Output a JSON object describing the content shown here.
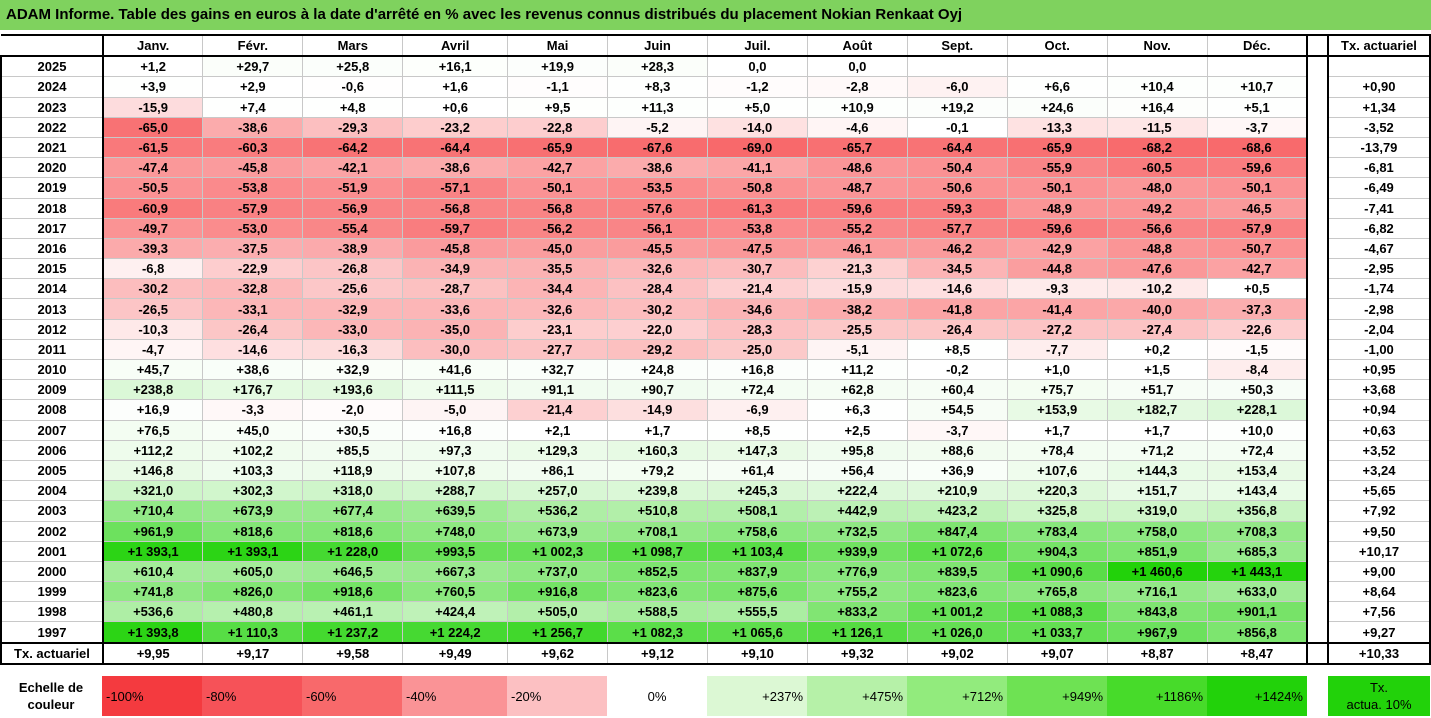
{
  "title": "ADAM Informe. Table des gains en euros à la date d'arrêté en % avec les revenus connus distribués du placement Nokian Renkaat Oyj",
  "months": [
    "Janv.",
    "Févr.",
    "Mars",
    "Avril",
    "Mai",
    "Juin",
    "Juil.",
    "Août",
    "Sept.",
    "Oct.",
    "Nov.",
    "Déc."
  ],
  "actuarial_header": "Tx. actuariel",
  "rows": [
    {
      "year": "2025",
      "values": [
        "+1,2",
        "+29,7",
        "+25,8",
        "+16,1",
        "+19,9",
        "+28,3",
        "0,0",
        "0,0",
        "",
        "",
        "",
        ""
      ],
      "rate": ""
    },
    {
      "year": "2024",
      "values": [
        "+3,9",
        "+2,9",
        "-0,6",
        "+1,6",
        "-1,1",
        "+8,3",
        "-1,2",
        "-2,8",
        "-6,0",
        "+6,6",
        "+10,4",
        "+10,7"
      ],
      "rate": "+0,90"
    },
    {
      "year": "2023",
      "values": [
        "-15,9",
        "+7,4",
        "+4,8",
        "+0,6",
        "+9,5",
        "+11,3",
        "+5,0",
        "+10,9",
        "+19,2",
        "+24,6",
        "+16,4",
        "+5,1"
      ],
      "rate": "+1,34"
    },
    {
      "year": "2022",
      "values": [
        "-65,0",
        "-38,6",
        "-29,3",
        "-23,2",
        "-22,8",
        "-5,2",
        "-14,0",
        "-4,6",
        "-0,1",
        "-13,3",
        "-11,5",
        "-3,7"
      ],
      "rate": "-3,52"
    },
    {
      "year": "2021",
      "values": [
        "-61,5",
        "-60,3",
        "-64,2",
        "-64,4",
        "-65,9",
        "-67,6",
        "-69,0",
        "-65,7",
        "-64,4",
        "-65,9",
        "-68,2",
        "-68,6"
      ],
      "rate": "-13,79"
    },
    {
      "year": "2020",
      "values": [
        "-47,4",
        "-45,8",
        "-42,1",
        "-38,6",
        "-42,7",
        "-38,6",
        "-41,1",
        "-48,6",
        "-50,4",
        "-55,9",
        "-60,5",
        "-59,6"
      ],
      "rate": "-6,81"
    },
    {
      "year": "2019",
      "values": [
        "-50,5",
        "-53,8",
        "-51,9",
        "-57,1",
        "-50,1",
        "-53,5",
        "-50,8",
        "-48,7",
        "-50,6",
        "-50,1",
        "-48,0",
        "-50,1"
      ],
      "rate": "-6,49"
    },
    {
      "year": "2018",
      "values": [
        "-60,9",
        "-57,9",
        "-56,9",
        "-56,8",
        "-56,8",
        "-57,6",
        "-61,3",
        "-59,6",
        "-59,3",
        "-48,9",
        "-49,2",
        "-46,5"
      ],
      "rate": "-7,41"
    },
    {
      "year": "2017",
      "values": [
        "-49,7",
        "-53,0",
        "-55,4",
        "-59,7",
        "-56,2",
        "-56,1",
        "-53,8",
        "-55,2",
        "-57,7",
        "-59,6",
        "-56,6",
        "-57,9"
      ],
      "rate": "-6,82"
    },
    {
      "year": "2016",
      "values": [
        "-39,3",
        "-37,5",
        "-38,9",
        "-45,8",
        "-45,0",
        "-45,5",
        "-47,5",
        "-46,1",
        "-46,2",
        "-42,9",
        "-48,8",
        "-50,7"
      ],
      "rate": "-4,67"
    },
    {
      "year": "2015",
      "values": [
        "-6,8",
        "-22,9",
        "-26,8",
        "-34,9",
        "-35,5",
        "-32,6",
        "-30,7",
        "-21,3",
        "-34,5",
        "-44,8",
        "-47,6",
        "-42,7"
      ],
      "rate": "-2,95"
    },
    {
      "year": "2014",
      "values": [
        "-30,2",
        "-32,8",
        "-25,6",
        "-28,7",
        "-34,4",
        "-28,4",
        "-21,4",
        "-15,9",
        "-14,6",
        "-9,3",
        "-10,2",
        "+0,5"
      ],
      "rate": "-1,74"
    },
    {
      "year": "2013",
      "values": [
        "-26,5",
        "-33,1",
        "-32,9",
        "-33,6",
        "-32,6",
        "-30,2",
        "-34,6",
        "-38,2",
        "-41,8",
        "-41,4",
        "-40,0",
        "-37,3"
      ],
      "rate": "-2,98"
    },
    {
      "year": "2012",
      "values": [
        "-10,3",
        "-26,4",
        "-33,0",
        "-35,0",
        "-23,1",
        "-22,0",
        "-28,3",
        "-25,5",
        "-26,4",
        "-27,2",
        "-27,4",
        "-22,6"
      ],
      "rate": "-2,04"
    },
    {
      "year": "2011",
      "values": [
        "-4,7",
        "-14,6",
        "-16,3",
        "-30,0",
        "-27,7",
        "-29,2",
        "-25,0",
        "-5,1",
        "+8,5",
        "-7,7",
        "+0,2",
        "-1,5"
      ],
      "rate": "-1,00"
    },
    {
      "year": "2010",
      "values": [
        "+45,7",
        "+38,6",
        "+32,9",
        "+41,6",
        "+32,7",
        "+24,8",
        "+16,8",
        "+11,2",
        "-0,2",
        "+1,0",
        "+1,5",
        "-8,4"
      ],
      "rate": "+0,95"
    },
    {
      "year": "2009",
      "values": [
        "+238,8",
        "+176,7",
        "+193,6",
        "+111,5",
        "+91,1",
        "+90,7",
        "+72,4",
        "+62,8",
        "+60,4",
        "+75,7",
        "+51,7",
        "+50,3"
      ],
      "rate": "+3,68"
    },
    {
      "year": "2008",
      "values": [
        "+16,9",
        "-3,3",
        "-2,0",
        "-5,0",
        "-21,4",
        "-14,9",
        "-6,9",
        "+6,3",
        "+54,5",
        "+153,9",
        "+182,7",
        "+228,1"
      ],
      "rate": "+0,94"
    },
    {
      "year": "2007",
      "values": [
        "+76,5",
        "+45,0",
        "+30,5",
        "+16,8",
        "+2,1",
        "+1,7",
        "+8,5",
        "+2,5",
        "-3,7",
        "+1,7",
        "+1,7",
        "+10,0"
      ],
      "rate": "+0,63"
    },
    {
      "year": "2006",
      "values": [
        "+112,2",
        "+102,2",
        "+85,5",
        "+97,3",
        "+129,3",
        "+160,3",
        "+147,3",
        "+95,8",
        "+88,6",
        "+78,4",
        "+71,2",
        "+72,4"
      ],
      "rate": "+3,52"
    },
    {
      "year": "2005",
      "values": [
        "+146,8",
        "+103,3",
        "+118,9",
        "+107,8",
        "+86,1",
        "+79,2",
        "+61,4",
        "+56,4",
        "+36,9",
        "+107,6",
        "+144,3",
        "+153,4"
      ],
      "rate": "+3,24"
    },
    {
      "year": "2004",
      "values": [
        "+321,0",
        "+302,3",
        "+318,0",
        "+288,7",
        "+257,0",
        "+239,8",
        "+245,3",
        "+222,4",
        "+210,9",
        "+220,3",
        "+151,7",
        "+143,4"
      ],
      "rate": "+5,65"
    },
    {
      "year": "2003",
      "values": [
        "+710,4",
        "+673,9",
        "+677,4",
        "+639,5",
        "+536,2",
        "+510,8",
        "+508,1",
        "+442,9",
        "+423,2",
        "+325,8",
        "+319,0",
        "+356,8"
      ],
      "rate": "+7,92"
    },
    {
      "year": "2002",
      "values": [
        "+961,9",
        "+818,6",
        "+818,6",
        "+748,0",
        "+673,9",
        "+708,1",
        "+758,6",
        "+732,5",
        "+847,4",
        "+783,4",
        "+758,0",
        "+708,3"
      ],
      "rate": "+9,50"
    },
    {
      "year": "2001",
      "values": [
        "+1 393,1",
        "+1 393,1",
        "+1 228,0",
        "+993,5",
        "+1 002,3",
        "+1 098,7",
        "+1 103,4",
        "+939,9",
        "+1 072,6",
        "+904,3",
        "+851,9",
        "+685,3"
      ],
      "rate": "+10,17"
    },
    {
      "year": "2000",
      "values": [
        "+610,4",
        "+605,0",
        "+646,5",
        "+667,3",
        "+737,0",
        "+852,5",
        "+837,9",
        "+776,9",
        "+839,5",
        "+1 090,6",
        "+1 460,6",
        "+1 443,1"
      ],
      "rate": "+9,00"
    },
    {
      "year": "1999",
      "values": [
        "+741,8",
        "+826,0",
        "+918,6",
        "+760,5",
        "+916,8",
        "+823,6",
        "+875,6",
        "+755,2",
        "+823,6",
        "+765,8",
        "+716,1",
        "+633,0"
      ],
      "rate": "+8,64"
    },
    {
      "year": "1998",
      "values": [
        "+536,6",
        "+480,8",
        "+461,1",
        "+424,4",
        "+505,0",
        "+588,5",
        "+555,5",
        "+833,2",
        "+1 001,2",
        "+1 088,3",
        "+843,8",
        "+901,1"
      ],
      "rate": "+7,56"
    },
    {
      "year": "1997",
      "values": [
        "+1 393,8",
        "+1 110,3",
        "+1 237,2",
        "+1 224,2",
        "+1 256,7",
        "+1 082,3",
        "+1 065,6",
        "+1 126,1",
        "+1 026,0",
        "+1 033,7",
        "+967,9",
        "+856,8"
      ],
      "rate": "+9,27"
    }
  ],
  "footer": {
    "label": "Tx. actuariel",
    "values": [
      "+9,95",
      "+9,17",
      "+9,58",
      "+9,49",
      "+9,62",
      "+9,12",
      "+9,10",
      "+9,32",
      "+9,02",
      "+9,07",
      "+8,87",
      "+8,47"
    ],
    "total": "+10,33"
  },
  "scale": {
    "label_line1": "Echelle de",
    "label_line2": "couleur",
    "steps": [
      "-100%",
      "-80%",
      "-60%",
      "-40%",
      "-20%",
      "0%",
      "+237%",
      "+475%",
      "+712%",
      "+949%",
      "+1186%",
      "+1424%"
    ],
    "colors": [
      "#f43a3f",
      "#f65258",
      "#f8696b",
      "#fa9396",
      "#fcc0c2",
      "#ffffff",
      "#dcf8d4",
      "#b6f1a8",
      "#92eb7d",
      "#6ee253",
      "#47db2a",
      "#22d20a"
    ],
    "actuarial_line1": "Tx.",
    "actuarial_line2": "actua. 10%",
    "actuarial_color": "#22d20a"
  },
  "colors": {
    "title_bg": "#7fd25e",
    "neg_full": "#f8696b",
    "pos_full": "#22d20a"
  }
}
